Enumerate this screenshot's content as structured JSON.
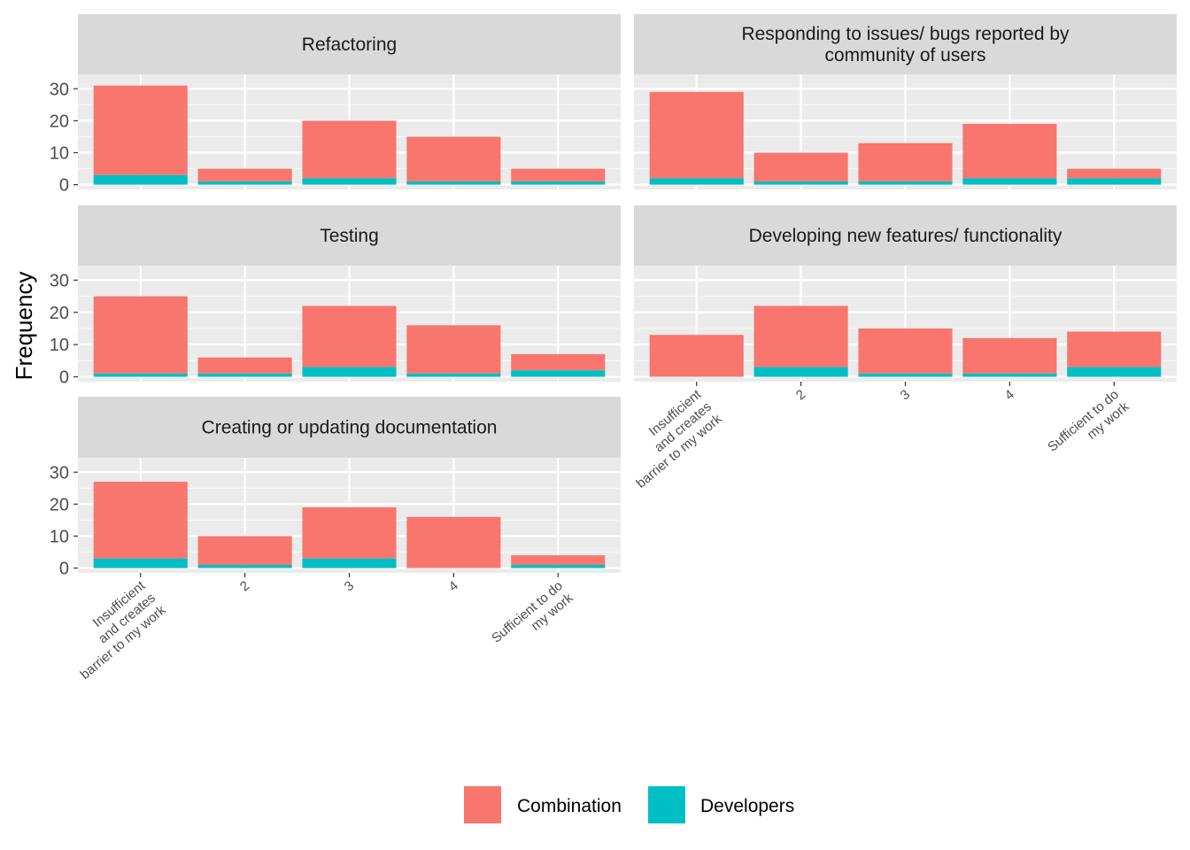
{
  "chart_data": {
    "type": "bar",
    "stacked": true,
    "ylabel": "Frequency",
    "ylim": [
      0,
      30
    ],
    "yticks": [
      0,
      10,
      20,
      30
    ],
    "categories": [
      "Insufficient\nand creates\nbarrier to my work",
      "2",
      "3",
      "4",
      "Sufficient to do\nmy work"
    ],
    "legend": {
      "position": "bottom",
      "entries": [
        {
          "name": "Combination",
          "color": "#F8766D"
        },
        {
          "name": "Developers",
          "color": "#00BFC4"
        }
      ]
    },
    "grid": true,
    "panels": [
      {
        "title": "Refactoring",
        "series": [
          {
            "name": "Developers",
            "values": [
              3,
              1,
              2,
              1,
              1
            ]
          },
          {
            "name": "Combination",
            "values": [
              28,
              4,
              18,
              14,
              4
            ]
          }
        ]
      },
      {
        "title": "Responding to issues/ bugs reported by\ncommunity of users",
        "series": [
          {
            "name": "Developers",
            "values": [
              2,
              1,
              1,
              2,
              2
            ]
          },
          {
            "name": "Combination",
            "values": [
              27,
              9,
              12,
              17,
              3
            ]
          }
        ]
      },
      {
        "title": "Testing",
        "series": [
          {
            "name": "Developers",
            "values": [
              1,
              1,
              3,
              1,
              2
            ]
          },
          {
            "name": "Combination",
            "values": [
              24,
              5,
              19,
              15,
              5
            ]
          }
        ]
      },
      {
        "title": "Developing new features/ functionality",
        "series": [
          {
            "name": "Developers",
            "values": [
              0,
              3,
              1,
              1,
              3
            ]
          },
          {
            "name": "Combination",
            "values": [
              13,
              19,
              14,
              11,
              11
            ]
          }
        ]
      },
      {
        "title": "Creating or updating documentation",
        "series": [
          {
            "name": "Developers",
            "values": [
              3,
              1,
              3,
              0,
              1
            ]
          },
          {
            "name": "Combination",
            "values": [
              24,
              9,
              16,
              16,
              3
            ]
          }
        ]
      }
    ]
  }
}
